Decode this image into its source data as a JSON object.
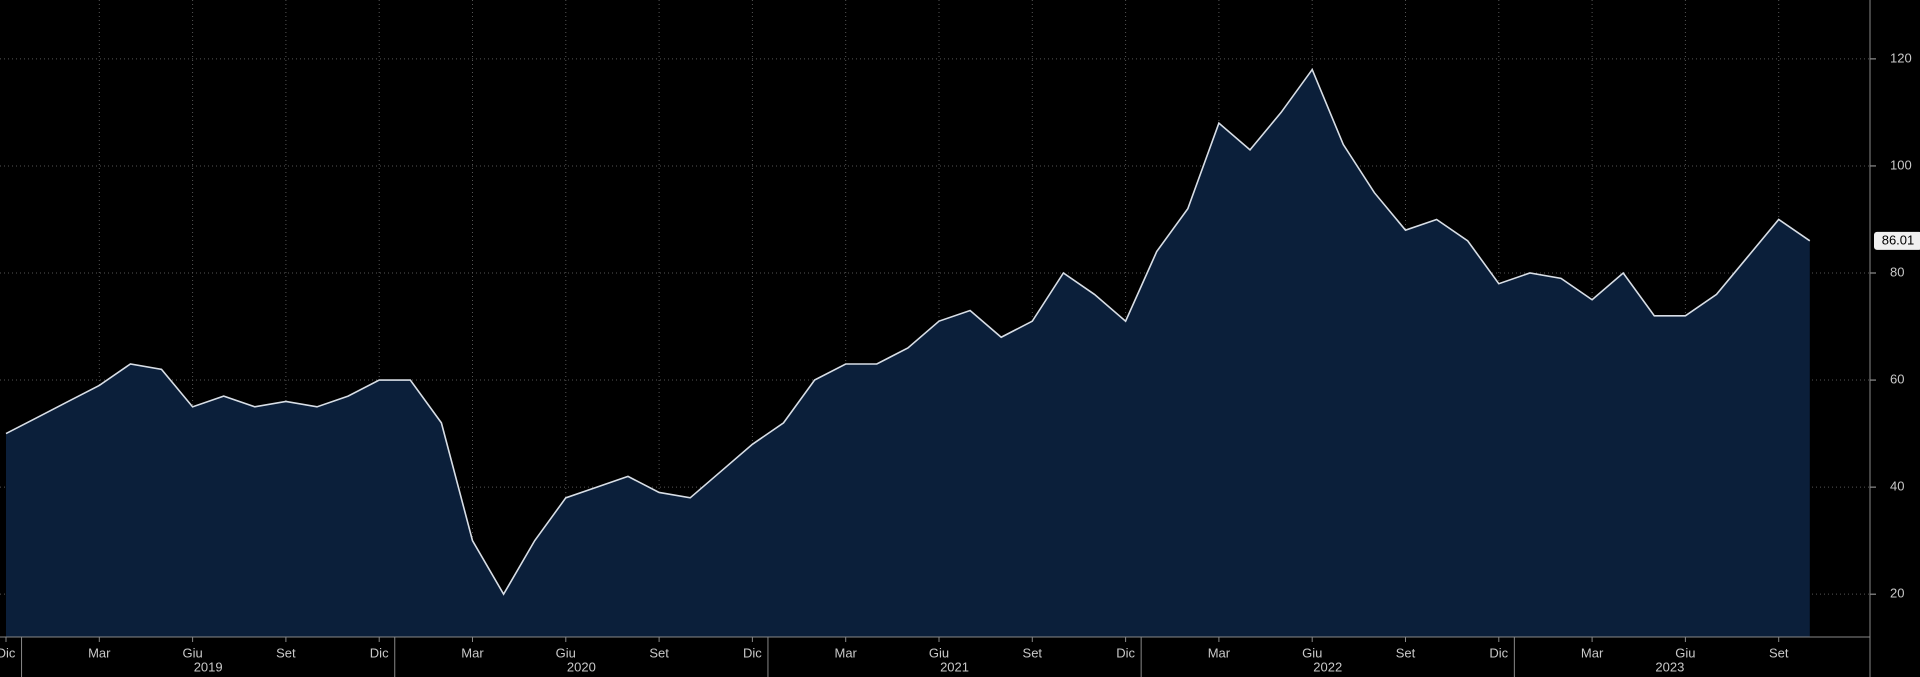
{
  "chart_data": {
    "type": "area",
    "x": [
      "2018-12",
      "2019-01",
      "2019-02",
      "2019-03",
      "2019-04",
      "2019-05",
      "2019-06",
      "2019-07",
      "2019-08",
      "2019-09",
      "2019-10",
      "2019-11",
      "2019-12",
      "2020-01",
      "2020-02",
      "2020-03",
      "2020-04",
      "2020-05",
      "2020-06",
      "2020-07",
      "2020-08",
      "2020-09",
      "2020-10",
      "2020-11",
      "2020-12",
      "2021-01",
      "2021-02",
      "2021-03",
      "2021-04",
      "2021-05",
      "2021-06",
      "2021-07",
      "2021-08",
      "2021-09",
      "2021-10",
      "2021-11",
      "2021-12",
      "2022-01",
      "2022-02",
      "2022-03",
      "2022-04",
      "2022-05",
      "2022-06",
      "2022-07",
      "2022-08",
      "2022-09",
      "2022-10",
      "2022-11",
      "2022-12",
      "2023-01",
      "2023-02",
      "2023-03",
      "2023-04",
      "2023-05",
      "2023-06",
      "2023-07",
      "2023-08",
      "2023-09",
      "2023-10"
    ],
    "values": [
      50,
      53,
      56,
      59,
      63,
      62,
      55,
      57,
      55,
      56,
      55,
      57,
      60,
      60,
      52,
      30,
      20,
      30,
      38,
      40,
      42,
      39,
      38,
      43,
      48,
      52,
      60,
      63,
      63,
      66,
      71,
      73,
      68,
      71,
      80,
      76,
      71,
      84,
      92,
      108,
      103,
      110,
      118,
      104,
      95,
      88,
      90,
      86,
      78,
      80,
      79,
      75,
      80,
      72,
      72,
      76,
      83,
      90,
      86.01
    ],
    "color": "#0b1f3a",
    "line_color": "#d8dee6",
    "last_value_label": "86.01",
    "ylim": [
      12,
      131
    ],
    "yticks": [
      20,
      40,
      60,
      80,
      100,
      120
    ],
    "grid": true,
    "xticks": [
      {
        "value": "2018-12",
        "label": "Dic"
      },
      {
        "value": "2019-03",
        "label": "Mar"
      },
      {
        "value": "2019-06",
        "label": "Giu"
      },
      {
        "value": "2019-09",
        "label": "Set"
      },
      {
        "value": "2019-12",
        "label": "Dic"
      },
      {
        "value": "2020-03",
        "label": "Mar"
      },
      {
        "value": "2020-06",
        "label": "Giu"
      },
      {
        "value": "2020-09",
        "label": "Set"
      },
      {
        "value": "2020-12",
        "label": "Dic"
      },
      {
        "value": "2021-03",
        "label": "Mar"
      },
      {
        "value": "2021-06",
        "label": "Giu"
      },
      {
        "value": "2021-09",
        "label": "Set"
      },
      {
        "value": "2021-12",
        "label": "Dic"
      },
      {
        "value": "2022-03",
        "label": "Mar"
      },
      {
        "value": "2022-06",
        "label": "Giu"
      },
      {
        "value": "2022-09",
        "label": "Set"
      },
      {
        "value": "2022-12",
        "label": "Dic"
      },
      {
        "value": "2023-03",
        "label": "Mar"
      },
      {
        "value": "2023-06",
        "label": "Giu"
      },
      {
        "value": "2023-09",
        "label": "Set"
      }
    ],
    "years": [
      "2019",
      "2020",
      "2021",
      "2022",
      "2023"
    ]
  }
}
